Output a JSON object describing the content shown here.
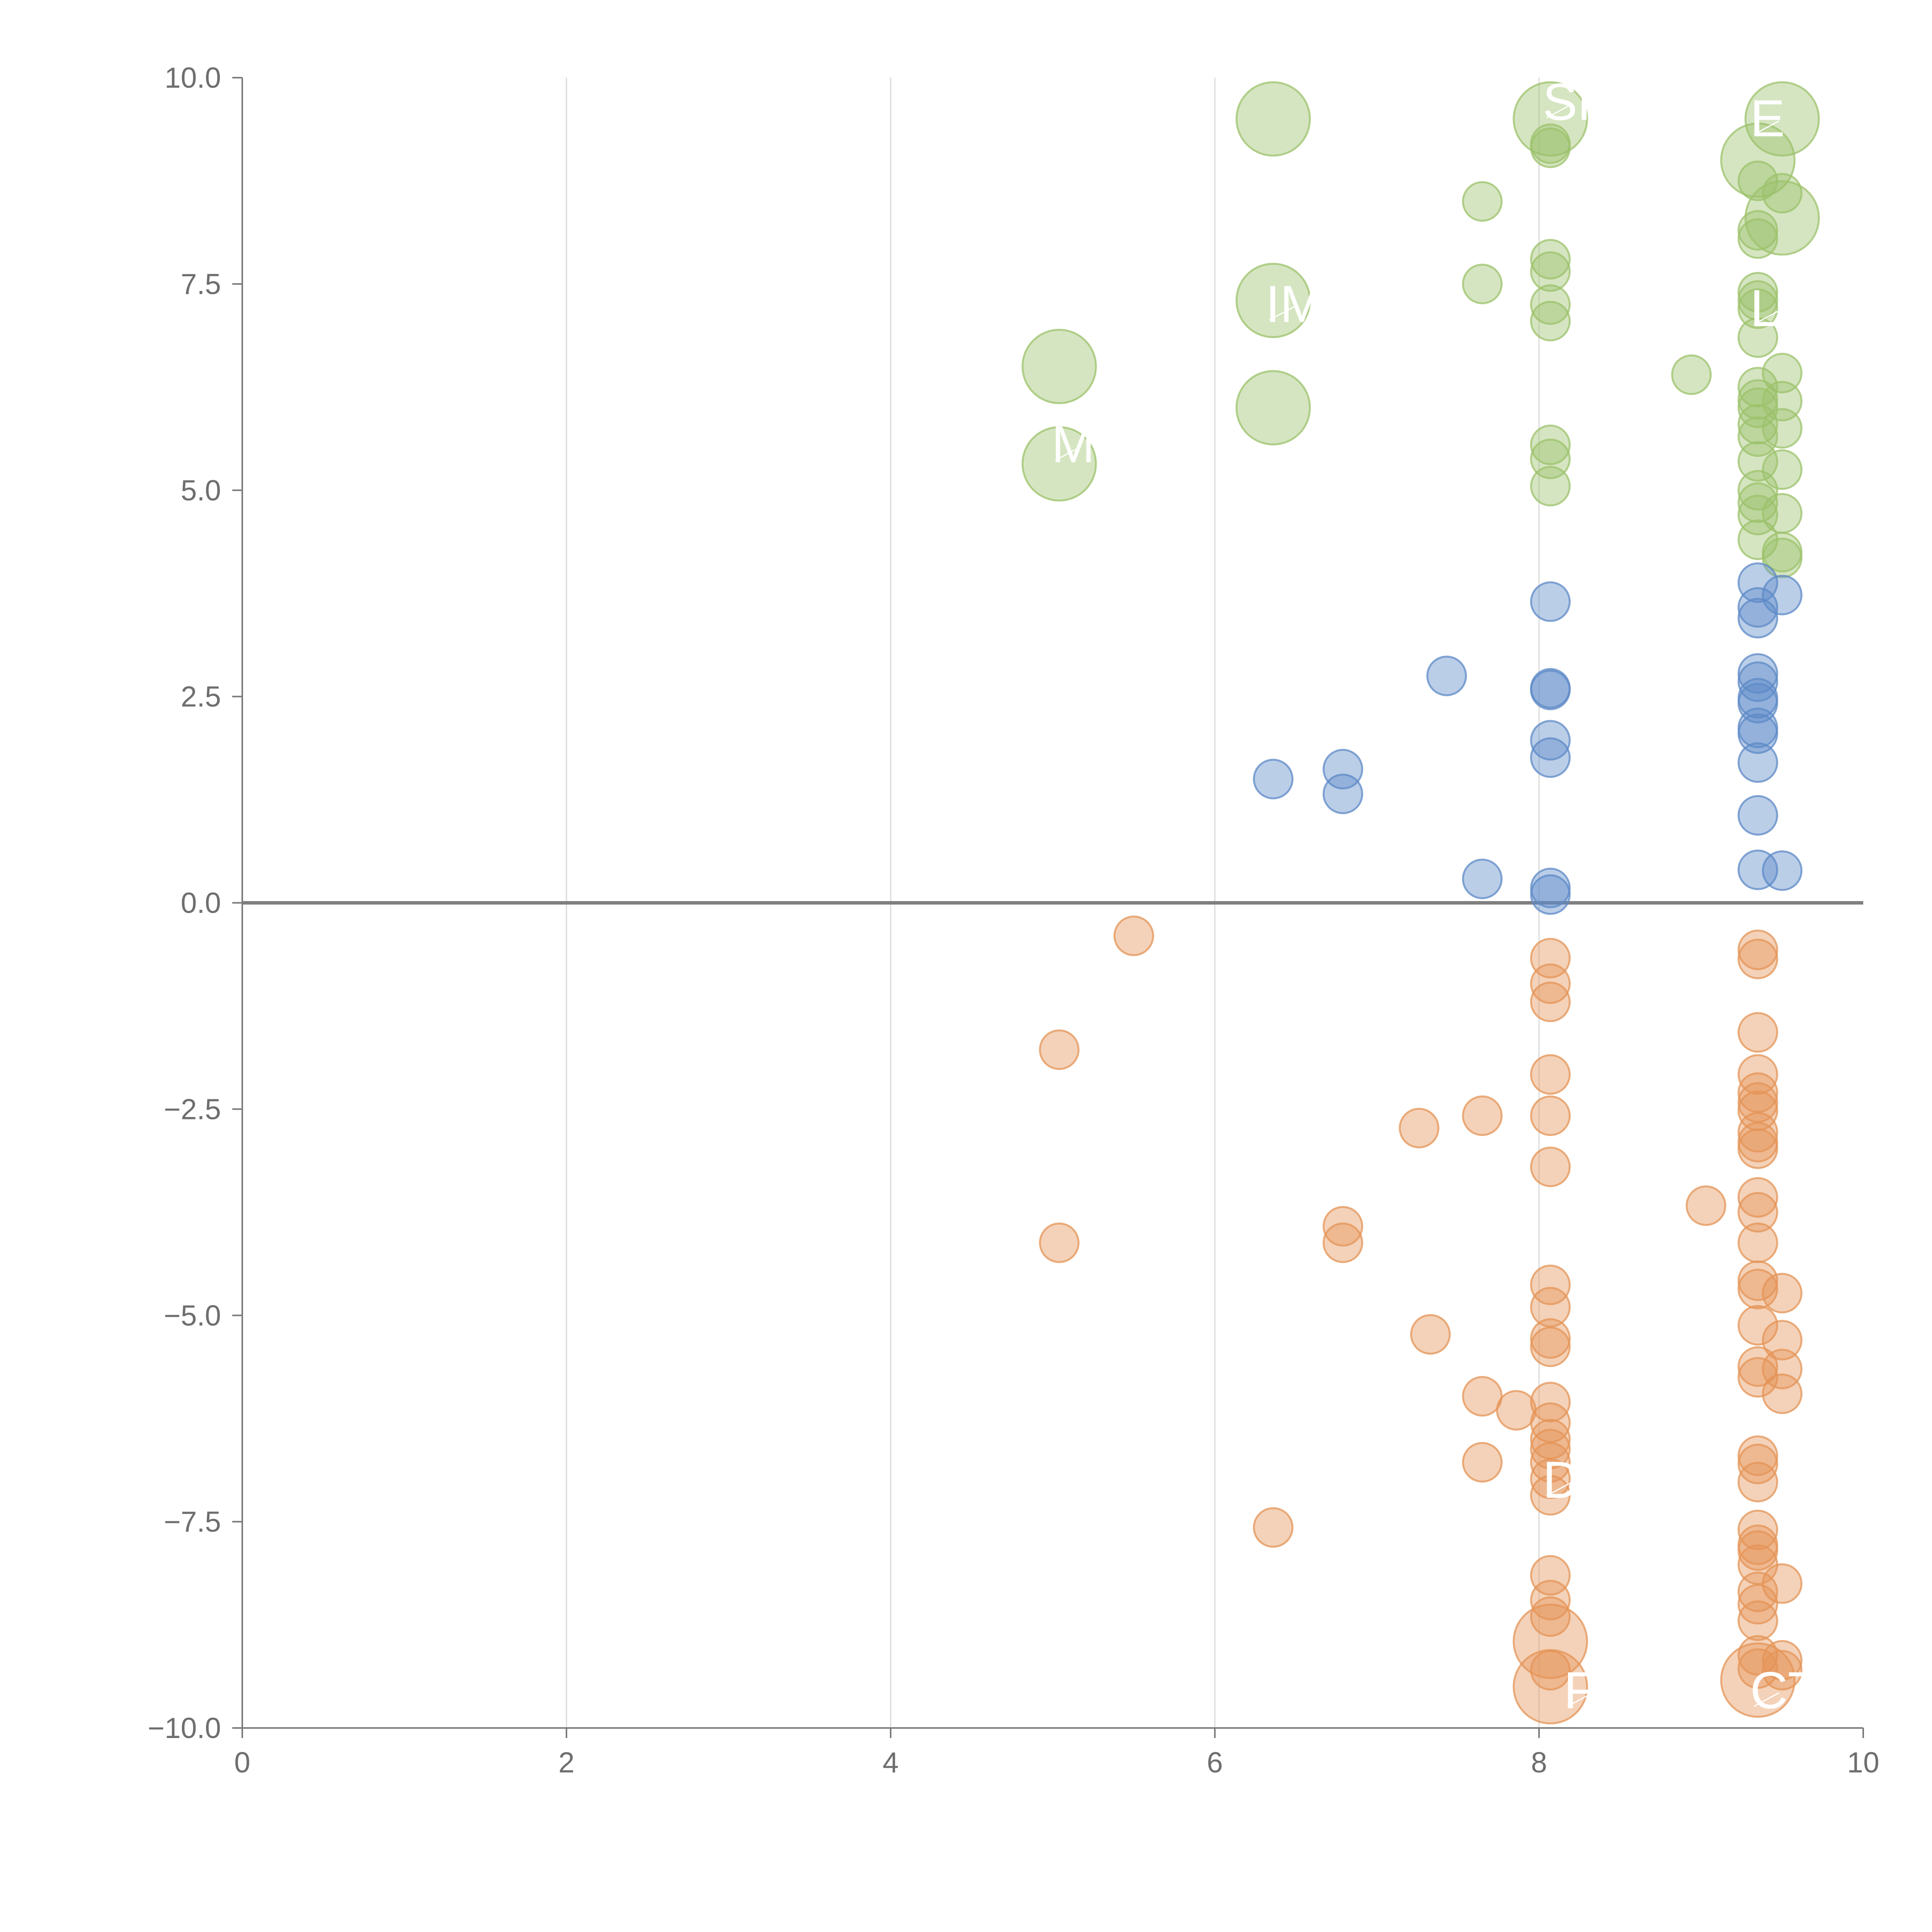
{
  "chart_data": {
    "type": "scatter",
    "title": "",
    "xlabel": "",
    "ylabel": "",
    "xlim": [
      0,
      10
    ],
    "ylim": [
      -10,
      10
    ],
    "x_ticks": [
      "0",
      "2",
      "4",
      "6",
      "8",
      "10"
    ],
    "y_ticks": [
      "10.0",
      "7.5",
      "5.0",
      "2.5",
      "0.0",
      "−2.5",
      "−5.0",
      "−7.5",
      "−10.0"
    ],
    "grid": "vertical gridlines",
    "zero_line": 0,
    "colors": {
      "positive_high": "#9cc26b",
      "positive_low": "#5e8ac7",
      "negative": "#e49457"
    },
    "series": [
      {
        "color": "#9cc26b",
        "points": [
          {
            "x": 5.04,
            "y": 6.5,
            "size": "large"
          },
          {
            "x": 5.04,
            "y": 5.32,
            "size": "large"
          },
          {
            "x": 6.36,
            "y": 9.5,
            "size": "large"
          },
          {
            "x": 6.36,
            "y": 7.3,
            "size": "large"
          },
          {
            "x": 6.36,
            "y": 6.0,
            "size": "large"
          },
          {
            "x": 7.65,
            "y": 8.5
          },
          {
            "x": 7.65,
            "y": 7.5
          },
          {
            "x": 8.07,
            "y": 9.5,
            "size": "large"
          },
          {
            "x": 8.07,
            "y": 9.2
          },
          {
            "x": 8.07,
            "y": 9.15
          },
          {
            "x": 8.07,
            "y": 7.8
          },
          {
            "x": 8.07,
            "y": 7.65
          },
          {
            "x": 8.07,
            "y": 7.25
          },
          {
            "x": 8.07,
            "y": 7.05
          },
          {
            "x": 8.07,
            "y": 5.55
          },
          {
            "x": 8.07,
            "y": 5.38
          },
          {
            "x": 8.07,
            "y": 5.05
          },
          {
            "x": 8.94,
            "y": 6.4
          },
          {
            "x": 9.35,
            "y": 9.0,
            "size": "large"
          },
          {
            "x": 9.35,
            "y": 8.75
          },
          {
            "x": 9.35,
            "y": 8.15
          },
          {
            "x": 9.35,
            "y": 8.05
          },
          {
            "x": 9.35,
            "y": 7.4
          },
          {
            "x": 9.35,
            "y": 7.3
          },
          {
            "x": 9.35,
            "y": 7.2
          },
          {
            "x": 9.35,
            "y": 6.85
          },
          {
            "x": 9.35,
            "y": 6.25
          },
          {
            "x": 9.35,
            "y": 6.1
          },
          {
            "x": 9.35,
            "y": 6.0
          },
          {
            "x": 9.35,
            "y": 5.8
          },
          {
            "x": 9.35,
            "y": 5.65
          },
          {
            "x": 9.35,
            "y": 5.35
          },
          {
            "x": 9.35,
            "y": 5.0
          },
          {
            "x": 9.35,
            "y": 4.85
          },
          {
            "x": 9.35,
            "y": 4.7
          },
          {
            "x": 9.35,
            "y": 4.4
          },
          {
            "x": 9.5,
            "y": 9.5,
            "size": "large"
          },
          {
            "x": 9.5,
            "y": 8.6
          },
          {
            "x": 9.5,
            "y": 8.3,
            "size": "large"
          },
          {
            "x": 9.5,
            "y": 6.42
          },
          {
            "x": 9.5,
            "y": 6.08
          },
          {
            "x": 9.5,
            "y": 5.75
          },
          {
            "x": 9.5,
            "y": 5.25
          },
          {
            "x": 9.5,
            "y": 4.72
          },
          {
            "x": 9.5,
            "y": 4.25
          },
          {
            "x": 9.5,
            "y": 4.18
          }
        ]
      },
      {
        "color": "#5e8ac7",
        "points": [
          {
            "x": 6.36,
            "y": 1.5
          },
          {
            "x": 6.79,
            "y": 1.62
          },
          {
            "x": 6.79,
            "y": 1.32
          },
          {
            "x": 7.43,
            "y": 2.75
          },
          {
            "x": 7.65,
            "y": 0.29
          },
          {
            "x": 8.07,
            "y": 3.65
          },
          {
            "x": 8.07,
            "y": 2.6
          },
          {
            "x": 8.07,
            "y": 2.58
          },
          {
            "x": 8.07,
            "y": 1.97
          },
          {
            "x": 8.07,
            "y": 1.76
          },
          {
            "x": 8.07,
            "y": 0.18
          },
          {
            "x": 8.07,
            "y": 0.1
          },
          {
            "x": 9.35,
            "y": 3.88
          },
          {
            "x": 9.35,
            "y": 3.58
          },
          {
            "x": 9.35,
            "y": 3.45
          },
          {
            "x": 9.35,
            "y": 2.78
          },
          {
            "x": 9.35,
            "y": 2.68
          },
          {
            "x": 9.35,
            "y": 2.48
          },
          {
            "x": 9.35,
            "y": 2.42
          },
          {
            "x": 9.35,
            "y": 2.12
          },
          {
            "x": 9.35,
            "y": 2.05
          },
          {
            "x": 9.35,
            "y": 1.7
          },
          {
            "x": 9.35,
            "y": 1.06
          },
          {
            "x": 9.35,
            "y": 0.4
          },
          {
            "x": 9.5,
            "y": 3.73
          },
          {
            "x": 9.5,
            "y": 0.39
          }
        ]
      },
      {
        "color": "#e49457",
        "points": [
          {
            "x": 5.04,
            "y": -1.78
          },
          {
            "x": 5.04,
            "y": -4.12
          },
          {
            "x": 5.5,
            "y": -0.4
          },
          {
            "x": 6.36,
            "y": -7.57
          },
          {
            "x": 6.79,
            "y": -3.92
          },
          {
            "x": 6.79,
            "y": -4.12
          },
          {
            "x": 7.26,
            "y": -2.73
          },
          {
            "x": 7.33,
            "y": -5.23
          },
          {
            "x": 7.65,
            "y": -2.58
          },
          {
            "x": 7.65,
            "y": -5.98
          },
          {
            "x": 7.65,
            "y": -6.78
          },
          {
            "x": 7.86,
            "y": -6.15
          },
          {
            "x": 8.07,
            "y": -0.67
          },
          {
            "x": 8.07,
            "y": -0.98
          },
          {
            "x": 8.07,
            "y": -1.2
          },
          {
            "x": 8.07,
            "y": -2.08
          },
          {
            "x": 8.07,
            "y": -2.58
          },
          {
            "x": 8.07,
            "y": -3.2
          },
          {
            "x": 8.07,
            "y": -4.63
          },
          {
            "x": 8.07,
            "y": -4.9
          },
          {
            "x": 8.07,
            "y": -5.28
          },
          {
            "x": 8.07,
            "y": -5.38
          },
          {
            "x": 8.07,
            "y": -6.05
          },
          {
            "x": 8.07,
            "y": -6.3
          },
          {
            "x": 8.07,
            "y": -6.5
          },
          {
            "x": 8.07,
            "y": -6.62
          },
          {
            "x": 8.07,
            "y": -6.78
          },
          {
            "x": 8.07,
            "y": -6.98
          },
          {
            "x": 8.07,
            "y": -7.18
          },
          {
            "x": 8.07,
            "y": -8.15
          },
          {
            "x": 8.07,
            "y": -8.45
          },
          {
            "x": 8.07,
            "y": -8.65
          },
          {
            "x": 8.07,
            "y": -8.95,
            "size": "large"
          },
          {
            "x": 8.07,
            "y": -9.3
          },
          {
            "x": 8.07,
            "y": -9.5,
            "size": "large"
          },
          {
            "x": 9.03,
            "y": -3.67
          },
          {
            "x": 9.35,
            "y": -0.57
          },
          {
            "x": 9.35,
            "y": -0.68
          },
          {
            "x": 9.35,
            "y": -1.57
          },
          {
            "x": 9.35,
            "y": -2.08
          },
          {
            "x": 9.35,
            "y": -2.3
          },
          {
            "x": 9.35,
            "y": -2.42
          },
          {
            "x": 9.35,
            "y": -2.52
          },
          {
            "x": 9.35,
            "y": -2.78
          },
          {
            "x": 9.35,
            "y": -2.9
          },
          {
            "x": 9.35,
            "y": -2.98
          },
          {
            "x": 9.35,
            "y": -3.57
          },
          {
            "x": 9.35,
            "y": -3.75
          },
          {
            "x": 9.35,
            "y": -4.12
          },
          {
            "x": 9.35,
            "y": -4.58
          },
          {
            "x": 9.35,
            "y": -4.68
          },
          {
            "x": 9.35,
            "y": -5.12
          },
          {
            "x": 9.35,
            "y": -5.62
          },
          {
            "x": 9.35,
            "y": -5.75
          },
          {
            "x": 9.35,
            "y": -6.7
          },
          {
            "x": 9.35,
            "y": -6.8
          },
          {
            "x": 9.35,
            "y": -7.02
          },
          {
            "x": 9.35,
            "y": -7.6
          },
          {
            "x": 9.35,
            "y": -7.78
          },
          {
            "x": 9.35,
            "y": -7.85
          },
          {
            "x": 9.35,
            "y": -8.02
          },
          {
            "x": 9.35,
            "y": -8.35
          },
          {
            "x": 9.35,
            "y": -8.5
          },
          {
            "x": 9.35,
            "y": -8.7
          },
          {
            "x": 9.35,
            "y": -9.12
          },
          {
            "x": 9.35,
            "y": -9.28
          },
          {
            "x": 9.35,
            "y": -9.42,
            "size": "large"
          },
          {
            "x": 9.5,
            "y": -4.73
          },
          {
            "x": 9.5,
            "y": -5.3
          },
          {
            "x": 9.5,
            "y": -5.65
          },
          {
            "x": 9.5,
            "y": -5.95
          },
          {
            "x": 9.5,
            "y": -8.25
          },
          {
            "x": 9.5,
            "y": -9.18
          },
          {
            "x": 9.5,
            "y": -9.3
          }
        ]
      }
    ],
    "annotations": [
      {
        "text": "M",
        "x": 5.04,
        "y": 5.55
      },
      {
        "text": "IM",
        "x": 6.36,
        "y": 7.25
      },
      {
        "text": "SR",
        "x": 8.07,
        "y": 9.7
      },
      {
        "text": "E",
        "x": 9.35,
        "y": 9.5
      },
      {
        "text": "LR",
        "x": 9.35,
        "y": 7.2
      },
      {
        "text": "D",
        "x": 8.07,
        "y": -7.0
      },
      {
        "text": "F",
        "x": 8.2,
        "y": -9.55
      },
      {
        "text": "CTS",
        "x": 9.35,
        "y": -9.55
      }
    ]
  }
}
